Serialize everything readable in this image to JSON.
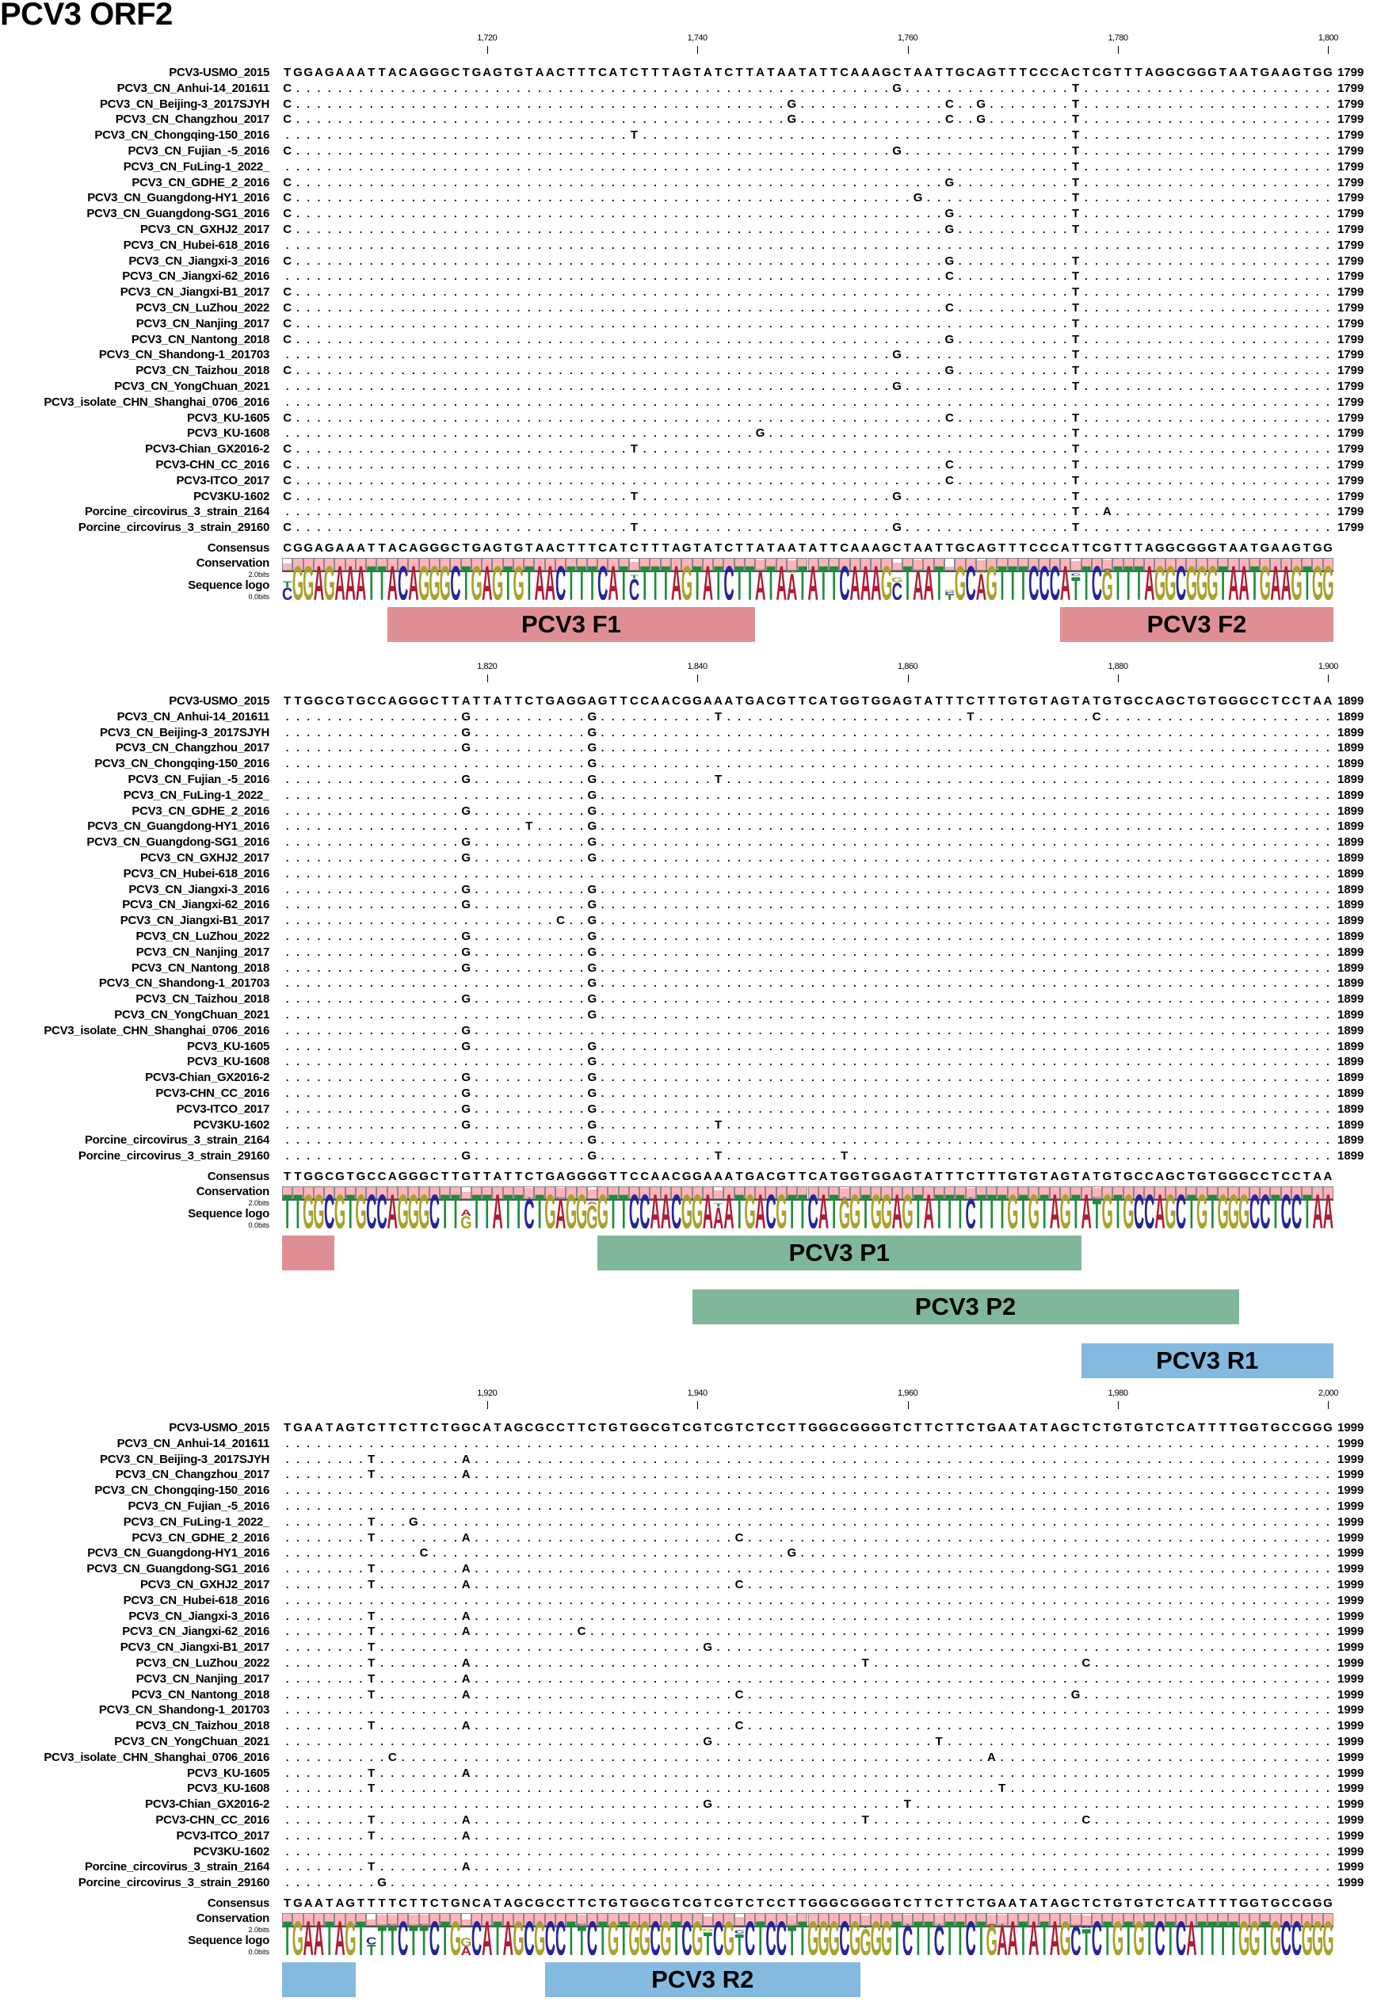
{
  "title": "PCV3 ORF2",
  "colors": {
    "A": "#b01c34",
    "C": "#24249c",
    "G": "#a8a22c",
    "T": "#1e8c3c",
    "forward_primer": "#df8f94",
    "probe": "#80b79a",
    "reverse_primer": "#84bae0",
    "conservation": "#ffb3ba"
  },
  "labels": {
    "consensus": "Consensus",
    "conservation": "Conservation",
    "logo": "Sequence logo",
    "bits_max": "2.0bits",
    "bits_min": "0.0bits"
  },
  "reference_name": "PCV3-USMO_2015",
  "sequences": [
    "PCV3_CN_Anhui-14_201611",
    "PCV3_CN_Beijing-3_2017SJYH",
    "PCV3_CN_Changzhou_2017",
    "PCV3_CN_Chongqing-150_2016",
    "PCV3_CN_Fujian_-5_2016",
    "PCV3_CN_FuLing-1_2022_",
    "PCV3_CN_GDHE_2_2016",
    "PCV3_CN_Guangdong-HY1_2016",
    "PCV3_CN_Guangdong-SG1_2016",
    "PCV3_CN_GXHJ2_2017",
    "PCV3_CN_Hubei-618_2016",
    "PCV3_CN_Jiangxi-3_2016",
    "PCV3_CN_Jiangxi-62_2016",
    "PCV3_CN_Jiangxi-B1_2017",
    "PCV3_CN_LuZhou_2022",
    "PCV3_CN_Nanjing_2017",
    "PCV3_CN_Nantong_2018",
    "PCV3_CN_Shandong-1_201703",
    "PCV3_CN_Taizhou_2018",
    "PCV3_CN_YongChuan_2021",
    "PCV3_isolate_CHN_Shanghai_0706_2016",
    "PCV3_KU-1605",
    "PCV3_KU-1608",
    "PCV3-Chian_GX2016-2",
    "PCV3-CHN_CC_2016",
    "PCV3-ITCO_2017",
    "PCV3KU-1602",
    "Porcine_circovirus_3_strain_2164",
    "Porcine_circovirus_3_strain_29160"
  ],
  "blocks": [
    {
      "range": [
        1701,
        1800
      ],
      "end_label": "1799",
      "ticks": [
        "1,720",
        "1,740",
        "1,760",
        "1,780",
        "1,800"
      ],
      "reference": "TGGAGAAATTACAGGGCTGAGTGTAACTTTCATCTTTAGTATCTTATAATATTCAAAGCTAATTGCAGTTTCCCACTCGTTTAGGCGGGTAATGAAGTGG",
      "consensus": "CGGAGAAATTACAGGGCTGAGTGTAACTTTCATCTTTAGTATCTTATAATATTCAAAGCTAATTGCAGTTTCCCATTCGTTTAGGCGGGTAATGAAGTGG",
      "variants": [
        [
          "1701C",
          "1759G",
          "1776T"
        ],
        [
          "1701C",
          "1749G",
          "1764C",
          "1767G",
          "1776T"
        ],
        [
          "1701C",
          "1749G",
          "1764C",
          "1767G",
          "1776T"
        ],
        [
          "1734T",
          "1776T"
        ],
        [
          "1701C",
          "1759G",
          "1776T"
        ],
        [
          "1776T"
        ],
        [
          "1701C",
          "1764G",
          "1776T"
        ],
        [
          "1701C",
          "1761G",
          "1776T"
        ],
        [
          "1701C",
          "1764G",
          "1776T"
        ],
        [
          "1701C",
          "1764G",
          "1776T"
        ],
        [],
        [
          "1701C",
          "1764G",
          "1776T"
        ],
        [
          "1764C",
          "1776T"
        ],
        [
          "1701C",
          "1776T"
        ],
        [
          "1701C",
          "1764C",
          "1776T"
        ],
        [
          "1701C",
          "1776T"
        ],
        [
          "1701C",
          "1764G",
          "1776T"
        ],
        [
          "1759G",
          "1776T"
        ],
        [
          "1701C",
          "1764G",
          "1776T"
        ],
        [
          "1759G",
          "1776T"
        ],
        [],
        [
          "1701C",
          "1764C",
          "1776T"
        ],
        [
          "1746G",
          "1776T"
        ],
        [
          "1701C",
          "1734T",
          "1776T"
        ],
        [
          "1701C",
          "1764C",
          "1776T"
        ],
        [
          "1701C",
          "1764C",
          "1776T"
        ],
        [
          "1701C",
          "1734T",
          "1759G",
          "1776T"
        ],
        [
          "1776T",
          "1779A"
        ],
        [
          "1701C",
          "1734T",
          "1759G",
          "1776T"
        ]
      ],
      "annotation_lanes": [
        [
          {
            "label": "PCV3 F1",
            "from": 1711,
            "to": 1745,
            "kind": "forward_primer"
          },
          {
            "label": "PCV3 F2",
            "from": 1775,
            "to": 1800,
            "kind": "forward_primer"
          }
        ]
      ]
    },
    {
      "range": [
        1801,
        1900
      ],
      "end_label": "1899",
      "ticks": [
        "1,820",
        "1,840",
        "1,860",
        "1,880",
        "1,900"
      ],
      "reference": "TTGGCGTGCCAGGGCTTATTATTCTGAGGAGTTCCAACGGAAATGACGTTCATGGTGGAGTATTTCTTTGTGTAGTATGTGCCAGCTGTGGGCCTCCTAA",
      "consensus": "TTGGCGTGCCAGGGCTTGTTATTCTGAGGGGTTCCAACGGAAATGACGTTCATGGTGGAGTATTTCTTTGTGTAGTATGTGCCAGCTGTGGGCCTCCTAA",
      "variants": [
        [
          "1818G",
          "1830G",
          "1842T",
          "1866T",
          "1878C"
        ],
        [
          "1818G",
          "1830G"
        ],
        [
          "1818G",
          "1830G"
        ],
        [
          "1830G"
        ],
        [
          "1818G",
          "1830G",
          "1842T"
        ],
        [
          "1830G"
        ],
        [
          "1818G",
          "1830G"
        ],
        [
          "1824T",
          "1830G"
        ],
        [
          "1818G",
          "1830G"
        ],
        [
          "1818G",
          "1830G"
        ],
        [],
        [
          "1818G",
          "1830G"
        ],
        [
          "1818G",
          "1830G"
        ],
        [
          "1827C",
          "1830G"
        ],
        [
          "1818G",
          "1830G"
        ],
        [
          "1818G",
          "1830G"
        ],
        [
          "1818G",
          "1830G"
        ],
        [
          "1830G"
        ],
        [
          "1818G",
          "1830G"
        ],
        [
          "1830G"
        ],
        [
          "1818G"
        ],
        [
          "1818G",
          "1830G"
        ],
        [
          "1830G"
        ],
        [
          "1818G",
          "1830G"
        ],
        [
          "1818G",
          "1830G"
        ],
        [
          "1818G",
          "1830G"
        ],
        [
          "1818G",
          "1830G",
          "1842T"
        ],
        [
          "1830G"
        ],
        [
          "1818G",
          "1830G",
          "1842T",
          "1854T"
        ]
      ],
      "annotation_lanes": [
        [
          {
            "label": "",
            "from": 1801,
            "to": 1805,
            "kind": "forward_primer"
          },
          {
            "label": "PCV3 P1",
            "from": 1831,
            "to": 1876,
            "kind": "probe"
          }
        ],
        [
          {
            "label": "PCV3 P2",
            "from": 1840,
            "to": 1891,
            "kind": "probe"
          }
        ],
        [
          {
            "label": "PCV3 R1",
            "from": 1877,
            "to": 1900,
            "kind": "reverse_primer"
          }
        ]
      ]
    },
    {
      "range": [
        1901,
        2000
      ],
      "end_label": "1999",
      "ticks": [
        "1,920",
        "1,940",
        "1,960",
        "1,980",
        "2,000"
      ],
      "reference": "TGAATAGTCTTCTTCTGGCATAGCGCCTTCTGTGGCGTCGTCGTCTCCTTGGGCGGGGTCTTCTTCTGAATATAGCTCTGTGTCTCATTTTGGTGCCGGG",
      "consensus": "TGAATAGTTTTCTTCTGNCATAGCGCCTTCTGTGGCGTCGTCGTCTCCTTGGGCGGGGTCTTCTTCTGAATATAGCTCTGTGTCTCATTTTGGTGCCGGG",
      "variants": [
        [],
        [
          "1909T",
          "1918A"
        ],
        [
          "1909T",
          "1918A"
        ],
        [],
        [],
        [
          "1909T",
          "1913G"
        ],
        [
          "1909T",
          "1918A",
          "1944C"
        ],
        [
          "1914C",
          "1949G"
        ],
        [
          "1909T",
          "1918A"
        ],
        [
          "1909T",
          "1918A",
          "1944C"
        ],
        [],
        [
          "1909T",
          "1918A"
        ],
        [
          "1909T",
          "1918A",
          "1929C"
        ],
        [
          "1909T",
          "1941G"
        ],
        [
          "1909T",
          "1918A",
          "1956T",
          "1977C"
        ],
        [
          "1909T",
          "1918A"
        ],
        [
          "1909T",
          "1918A",
          "1944C",
          "1976G"
        ],
        [],
        [
          "1909T",
          "1918A",
          "1944C"
        ],
        [
          "1941G",
          "1963T"
        ],
        [
          "1911C",
          "1968A"
        ],
        [
          "1909T",
          "1918A"
        ],
        [
          "1909T",
          "1969T"
        ],
        [
          "1941G",
          "1960T"
        ],
        [
          "1909T",
          "1918A",
          "1956T",
          "1977C"
        ],
        [
          "1909T",
          "1918A"
        ],
        [],
        [
          "1909T",
          "1918A"
        ],
        [
          "1910G"
        ]
      ],
      "annotation_lanes": [
        [
          {
            "label": "",
            "from": 1901,
            "to": 1907,
            "kind": "reverse_primer"
          },
          {
            "label": "PCV3 R2",
            "from": 1926,
            "to": 1955,
            "kind": "reverse_primer"
          }
        ]
      ]
    }
  ]
}
